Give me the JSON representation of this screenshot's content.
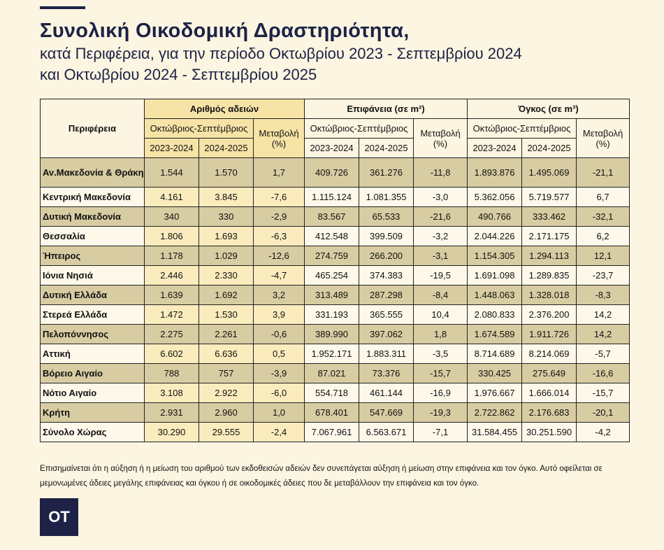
{
  "header": {
    "title": "Συνολική Οικοδομική Δραστηριότητα,",
    "subtitle_lines": [
      "κατά Περιφέρεια, για την περίοδο Οκτωβρίου 2023 - Σεπτεμβρίου 2024",
      "και Οκτωβρίου 2024 - Σεπτεμβρίου 2025"
    ]
  },
  "table": {
    "region_header": "Περιφέρεια",
    "groups": [
      {
        "title": "Αριθμός αδειών",
        "period": "Οκτώβριος-Σεπτέμβριος",
        "years": [
          "2023-2024",
          "2024-2025"
        ],
        "change": "Μεταβολή (%)"
      },
      {
        "title": "Επιφάνεια (σε m²)",
        "period": "Οκτώβριος-Σεπτέμβριος",
        "years": [
          "2023-2024",
          "2024-2025"
        ],
        "change": "Μεταβολή (%)"
      },
      {
        "title": "Όγκος (σε m³)",
        "period": "Οκτώβριος-Σεπτέμβριος",
        "years": [
          "2023-2024",
          "2024-2025"
        ],
        "change": "Μεταβολή (%)"
      }
    ],
    "rows": [
      [
        "Αν.Μακεδονία & Θράκη",
        "1.544",
        "1.570",
        "1,7",
        "409.726",
        "361.276",
        "-11,8",
        "1.893.876",
        "1.495.069",
        "-21,1"
      ],
      [
        "Κεντρική Μακεδονία",
        "4.161",
        "3.845",
        "-7,6",
        "1.115.124",
        "1.081.355",
        "-3,0",
        "5.362.056",
        "5.719.577",
        "6,7"
      ],
      [
        "Δυτική Μακεδονία",
        "340",
        "330",
        "-2,9",
        "83.567",
        "65.533",
        "-21,6",
        "490.766",
        "333.462",
        "-32,1"
      ],
      [
        "Θεσσαλία",
        "1.806",
        "1.693",
        "-6,3",
        "412.548",
        "399.509",
        "-3,2",
        "2.044.226",
        "2.171.175",
        "6,2"
      ],
      [
        "Ήπειρος",
        "1.178",
        "1.029",
        "-12,6",
        "274.759",
        "266.200",
        "-3,1",
        "1.154.305",
        "1.294.113",
        "12,1"
      ],
      [
        "Ιόνια Νησιά",
        "2.446",
        "2.330",
        "-4,7",
        "465.254",
        "374.383",
        "-19,5",
        "1.691.098",
        "1.289.835",
        "-23,7"
      ],
      [
        "Δυτική Ελλάδα",
        "1.639",
        "1.692",
        "3,2",
        "313.489",
        "287.298",
        "-8,4",
        "1.448.063",
        "1.328.018",
        "-8,3"
      ],
      [
        "Στερεά Ελλάδα",
        "1.472",
        "1.530",
        "3,9",
        "331.193",
        "365.555",
        "10,4",
        "2.080.833",
        "2.376.200",
        "14,2"
      ],
      [
        "Πελοπόννησος",
        "2.275",
        "2.261",
        "-0,6",
        "389.990",
        "397.062",
        "1,8",
        "1.674.589",
        "1.911.726",
        "14,2"
      ],
      [
        "Αττική",
        "6.602",
        "6.636",
        "0,5",
        "1.952.171",
        "1.883.311",
        "-3,5",
        "8.714.689",
        "8.214.069",
        "-5,7"
      ],
      [
        "Βόρειο Αιγαίο",
        "788",
        "757",
        "-3,9",
        "87.021",
        "73.376",
        "-15,7",
        "330.425",
        "275.649",
        "-16,6"
      ],
      [
        "Νότιο Αιγαίο",
        "3.108",
        "2.922",
        "-6,0",
        "554.718",
        "461.144",
        "-16,9",
        "1.976.667",
        "1.666.014",
        "-15,7"
      ],
      [
        "Κρήτη",
        "2.931",
        "2.960",
        "1,0",
        "678.401",
        "547.669",
        "-19,3",
        "2.722.862",
        "2.176.683",
        "-20,1"
      ],
      [
        "Σύνολο Χώρας",
        "30.290",
        "29.555",
        "-2,4",
        "7.067.961",
        "6.563.671",
        "-7,1",
        "31.584.455",
        "30.251.590",
        "-4,2"
      ]
    ]
  },
  "footnote": "Επισημαίνεται ότι η αύξηση ή η μείωση του αριθμού των εκδοθεισών αδειών δεν συνεπάγεται αύξηση ή μείωση στην επιφάνεια και τον όγκο. Αυτό οφείλεται σε μεμονωμένες άδειες μεγάλης επιφάνειας και όγκου ή σε οικοδομικές άδειες που δε μεταβάλλουν την επιφάνεια και τον όγκο.",
  "logo": "OT"
}
